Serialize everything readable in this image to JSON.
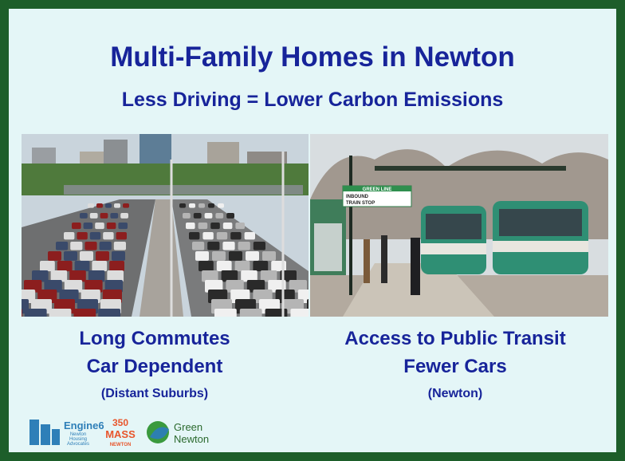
{
  "header": {
    "title": "Multi-Family Homes in Newton",
    "subtitle": "Less Driving = Lower Carbon Emissions"
  },
  "panels": [
    {
      "lines": [
        "Long Commutes",
        "Car Dependent"
      ],
      "note": "(Distant Suburbs)"
    },
    {
      "lines": [
        "Access to Public Transit",
        "Fewer Cars"
      ],
      "note": "(Newton)",
      "sign": [
        "GREEN LINE",
        "INBOUND",
        "TRAIN STOP"
      ]
    }
  ],
  "logos": {
    "engine6": {
      "name": "Engine6",
      "sub": [
        "Newton",
        "Housing",
        "Advocates"
      ]
    },
    "mass350": {
      "top": "350",
      "mid": "MASS",
      "bottom": "NEWTON"
    },
    "green_newton": [
      "Green",
      "Newton"
    ]
  }
}
